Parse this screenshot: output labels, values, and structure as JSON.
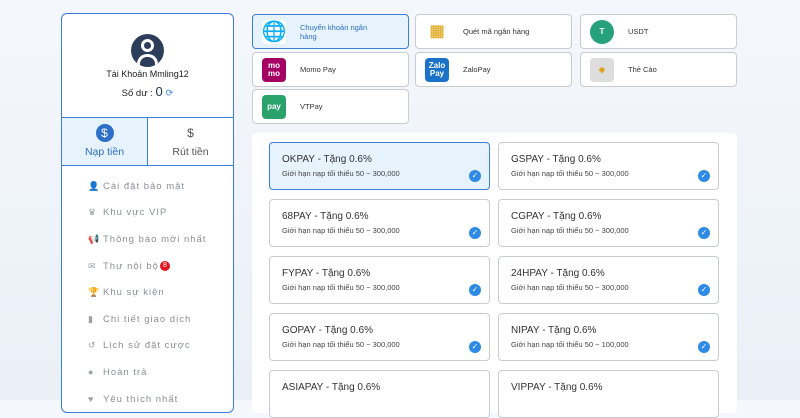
{
  "sidebar": {
    "username": "Tài Khoản Mmling12",
    "balance_label": "Số dư :",
    "balance_value": "0",
    "tabs": [
      {
        "label": "Nạp tiền",
        "icon": "deposit-icon",
        "active": true
      },
      {
        "label": "Rút tiền",
        "icon": "withdraw-icon",
        "active": false
      }
    ],
    "menu": [
      {
        "label": "Cài đặt bảo mật",
        "icon": "user-lock-icon"
      },
      {
        "label": "Khu vực VIP",
        "icon": "crown-icon"
      },
      {
        "label": "Thông báo mới nhất",
        "icon": "megaphone-icon"
      },
      {
        "label": "Thư nội bộ",
        "icon": "mail-icon",
        "badge": "8"
      },
      {
        "label": "Khu sự kiện",
        "icon": "trophy-icon"
      },
      {
        "label": "Chi tiết giao dịch",
        "icon": "clipboard-icon"
      },
      {
        "label": "Lịch sử đặt cược",
        "icon": "history-icon"
      },
      {
        "label": "Hoàn trả",
        "icon": "dollar-icon"
      },
      {
        "label": "Yêu thích nhất",
        "icon": "heart-icon"
      }
    ]
  },
  "methods": [
    {
      "label": "Chuyển khoản ngân hàng",
      "icon": "globe-icon",
      "active": true
    },
    {
      "label": "Quét mã ngân hàng",
      "icon": "qr-icon"
    },
    {
      "label": "USDT",
      "icon": "tether-icon"
    },
    {
      "label": "Momo Pay",
      "icon": "momo-icon",
      "logo": "mo mo"
    },
    {
      "label": "ZaloPay",
      "icon": "zalopay-icon",
      "logo": "Zalo Pay"
    },
    {
      "label": "Thẻ Cào",
      "icon": "card-icon"
    },
    {
      "label": "VTPay",
      "icon": "vtpay-icon",
      "logo": "pay"
    }
  ],
  "channels": [
    {
      "title": "OKPAY - Tặng 0.6%",
      "limit": "Giới hạn nạp tối thiểu 50 ~ 300,000",
      "active": true
    },
    {
      "title": "GSPAY - Tặng 0.6%",
      "limit": "Giới hạn nạp tối thiểu 50 ~ 300,000"
    },
    {
      "title": "68PAY - Tặng 0.6%",
      "limit": "Giới hạn nạp tối thiểu 50 ~ 300,000"
    },
    {
      "title": "CGPAY - Tặng 0.6%",
      "limit": "Giới hạn nạp tối thiểu 50 ~ 300,000"
    },
    {
      "title": "FYPAY - Tặng 0.6%",
      "limit": "Giới hạn nạp tối thiểu 50 ~ 300,000"
    },
    {
      "title": "24HPAY - Tặng 0.6%",
      "limit": "Giới hạn nạp tối thiểu 50 ~ 300,000"
    },
    {
      "title": "GOPAY - Tặng 0.6%",
      "limit": "Giới hạn nạp tối thiểu 50 ~ 300,000"
    },
    {
      "title": "NIPAY - Tặng 0.6%",
      "limit": "Giới hạn nạp tối thiểu 50 ~ 100,000"
    },
    {
      "title": "ASIAPAY - Tặng 0.6%",
      "limit": ""
    },
    {
      "title": "VIPPAY - Tặng 0.6%",
      "limit": ""
    }
  ],
  "colors": {
    "accent": "#3d7fd6",
    "active_bg": "#e6f3fd",
    "check": "#2d8be6",
    "badge": "#e0141e"
  }
}
